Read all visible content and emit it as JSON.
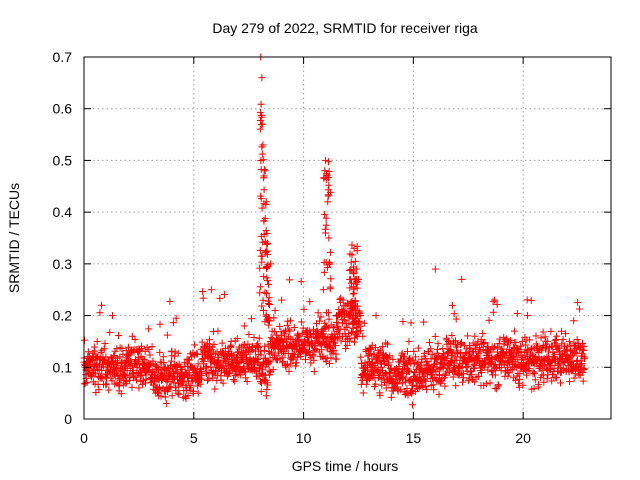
{
  "chart_data": {
    "type": "scatter",
    "title": "Day 279 of 2022, SRMTID for receiver riga",
    "xlabel": "GPS time / hours",
    "ylabel": "SRMTID / TECUs",
    "xlim": [
      0,
      24
    ],
    "ylim": [
      0,
      0.7
    ],
    "xticks": [
      0,
      5,
      10,
      15,
      20
    ],
    "xtick_labels": [
      "0",
      "5",
      "10",
      "15",
      "20"
    ],
    "yticks": [
      0,
      0.1,
      0.2,
      0.3,
      0.4,
      0.5,
      0.6,
      0.7
    ],
    "ytick_labels": [
      "0",
      "0.1",
      "0.2",
      "0.3",
      "0.4",
      "0.5",
      "0.6",
      "0.7"
    ],
    "grid": true,
    "marker": "+",
    "color": "#ff0000",
    "sample_points": [
      [
        0.0,
        0.11
      ],
      [
        0.2,
        0.13
      ],
      [
        0.4,
        0.09
      ],
      [
        0.6,
        0.15
      ],
      [
        0.8,
        0.22
      ],
      [
        1.0,
        0.12
      ],
      [
        1.3,
        0.2
      ],
      [
        1.6,
        0.07
      ],
      [
        1.9,
        0.11
      ],
      [
        2.2,
        0.16
      ],
      [
        2.5,
        0.06
      ],
      [
        2.8,
        0.09
      ],
      [
        3.1,
        0.14
      ],
      [
        3.4,
        0.05
      ],
      [
        3.7,
        0.1
      ],
      [
        4.0,
        0.13
      ],
      [
        4.3,
        0.07
      ],
      [
        4.6,
        0.09
      ],
      [
        4.9,
        0.12
      ],
      [
        5.2,
        0.05
      ],
      [
        5.5,
        0.14
      ],
      [
        5.8,
        0.25
      ],
      [
        6.1,
        0.17
      ],
      [
        6.4,
        0.09
      ],
      [
        6.7,
        0.15
      ],
      [
        7.0,
        0.12
      ],
      [
        7.3,
        0.18
      ],
      [
        7.6,
        0.11
      ],
      [
        7.9,
        0.14
      ],
      [
        8.05,
        0.7
      ],
      [
        8.1,
        0.66
      ],
      [
        8.12,
        0.57
      ],
      [
        8.15,
        0.53
      ],
      [
        8.2,
        0.47
      ],
      [
        8.25,
        0.48
      ],
      [
        8.3,
        0.42
      ],
      [
        8.35,
        0.34
      ],
      [
        8.4,
        0.26
      ],
      [
        8.5,
        0.3
      ],
      [
        8.7,
        0.21
      ],
      [
        9.0,
        0.23
      ],
      [
        9.4,
        0.19
      ],
      [
        9.8,
        0.16
      ],
      [
        10.2,
        0.13
      ],
      [
        10.6,
        0.17
      ],
      [
        10.9,
        0.25
      ],
      [
        11.0,
        0.5
      ],
      [
        11.05,
        0.47
      ],
      [
        11.1,
        0.42
      ],
      [
        11.15,
        0.35
      ],
      [
        11.2,
        0.3
      ],
      [
        11.5,
        0.2
      ],
      [
        11.8,
        0.23
      ],
      [
        12.1,
        0.27
      ],
      [
        12.3,
        0.33
      ],
      [
        12.4,
        0.29
      ],
      [
        12.7,
        0.16
      ],
      [
        13.0,
        0.11
      ],
      [
        13.3,
        0.2
      ],
      [
        13.6,
        0.14
      ],
      [
        13.9,
        0.09
      ],
      [
        14.2,
        0.06
      ],
      [
        14.5,
        0.08
      ],
      [
        14.8,
        0.15
      ],
      [
        15.1,
        0.12
      ],
      [
        15.4,
        0.09
      ],
      [
        15.7,
        0.13
      ],
      [
        16.0,
        0.29
      ],
      [
        16.3,
        0.1
      ],
      [
        16.6,
        0.15
      ],
      [
        16.9,
        0.12
      ],
      [
        17.2,
        0.27
      ],
      [
        17.5,
        0.11
      ],
      [
        17.8,
        0.16
      ],
      [
        18.1,
        0.09
      ],
      [
        18.4,
        0.14
      ],
      [
        18.7,
        0.23
      ],
      [
        19.0,
        0.12
      ],
      [
        19.3,
        0.1
      ],
      [
        19.6,
        0.17
      ],
      [
        19.9,
        0.13
      ],
      [
        20.2,
        0.2
      ],
      [
        20.5,
        0.11
      ],
      [
        20.8,
        0.08
      ],
      [
        21.1,
        0.15
      ],
      [
        21.4,
        0.12
      ],
      [
        21.7,
        0.09
      ],
      [
        22.0,
        0.14
      ],
      [
        22.3,
        0.19
      ],
      [
        22.6,
        0.1
      ],
      [
        22.8,
        0.12
      ]
    ]
  }
}
